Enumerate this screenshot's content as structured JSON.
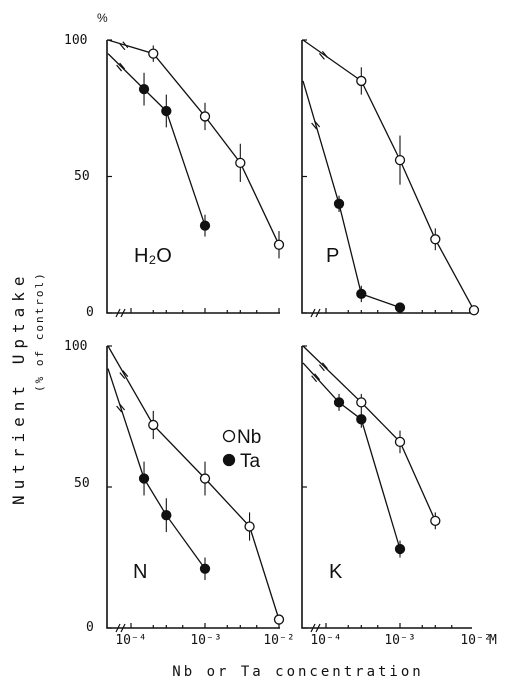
{
  "figure": {
    "y_unit_mark": "%",
    "y_label": "Nutrient Uptake",
    "y_label_sub": "(% of control)",
    "x_label": "Nb or Ta concentration",
    "x_unit_mark": "M",
    "y_ticks": [
      "100",
      "50",
      "0"
    ],
    "x_ticks": [
      "10⁻⁴",
      "10⁻³",
      "10⁻²"
    ]
  },
  "legend": {
    "items": [
      {
        "label": "Nb",
        "marker": "open-circle"
      },
      {
        "label": "Ta",
        "marker": "filled-circle"
      }
    ]
  },
  "chart_data": [
    {
      "type": "line",
      "title": "H₂O",
      "x_scale": "log",
      "xlim": [
        5e-05,
        0.01
      ],
      "ylim": [
        0,
        100
      ],
      "series": [
        {
          "name": "Nb",
          "marker": "open",
          "x": [
            0,
            0.0002,
            0.001,
            0.003,
            0.01
          ],
          "y": [
            100,
            95,
            72,
            55,
            25
          ],
          "err": [
            0,
            3,
            5,
            7,
            5
          ]
        },
        {
          "name": "Ta",
          "marker": "filled",
          "x": [
            0,
            0.00015,
            0.0003,
            0.001
          ],
          "y": [
            95,
            82,
            74,
            32
          ],
          "err": [
            0,
            6,
            6,
            4
          ]
        }
      ]
    },
    {
      "type": "line",
      "title": "P",
      "x_scale": "log",
      "xlim": [
        5e-05,
        0.01
      ],
      "ylim": [
        0,
        100
      ],
      "series": [
        {
          "name": "Nb",
          "marker": "open",
          "x": [
            0,
            0.0003,
            0.001,
            0.003,
            0.01
          ],
          "y": [
            100,
            85,
            56,
            27,
            1
          ],
          "err": [
            0,
            5,
            9,
            4,
            0
          ]
        },
        {
          "name": "Ta",
          "marker": "filled",
          "x": [
            0,
            0.00015,
            0.0003,
            0.001
          ],
          "y": [
            85,
            40,
            7,
            2
          ],
          "err": [
            0,
            3,
            3,
            1
          ]
        }
      ]
    },
    {
      "type": "line",
      "title": "N",
      "x_scale": "log",
      "xlim": [
        5e-05,
        0.01
      ],
      "ylim": [
        0,
        100
      ],
      "series": [
        {
          "name": "Nb",
          "marker": "open",
          "x": [
            0,
            0.0002,
            0.001,
            0.004,
            0.01
          ],
          "y": [
            100,
            72,
            53,
            36,
            3
          ],
          "err": [
            0,
            5,
            6,
            5,
            0
          ]
        },
        {
          "name": "Ta",
          "marker": "filled",
          "x": [
            0,
            0.00015,
            0.0003,
            0.001
          ],
          "y": [
            92,
            53,
            40,
            21
          ],
          "err": [
            0,
            6,
            6,
            4
          ]
        }
      ]
    },
    {
      "type": "line",
      "title": "K",
      "x_scale": "log",
      "xlim": [
        5e-05,
        0.01
      ],
      "ylim": [
        0,
        100
      ],
      "series": [
        {
          "name": "Nb",
          "marker": "open",
          "x": [
            0,
            0.0003,
            0.001,
            0.003
          ],
          "y": [
            100,
            80,
            66,
            38
          ],
          "err": [
            0,
            3,
            4,
            3
          ]
        },
        {
          "name": "Ta",
          "marker": "filled",
          "x": [
            0,
            0.00015,
            0.0003,
            0.001
          ],
          "y": [
            94,
            80,
            74,
            28
          ],
          "err": [
            0,
            3,
            3,
            3
          ]
        }
      ]
    }
  ]
}
